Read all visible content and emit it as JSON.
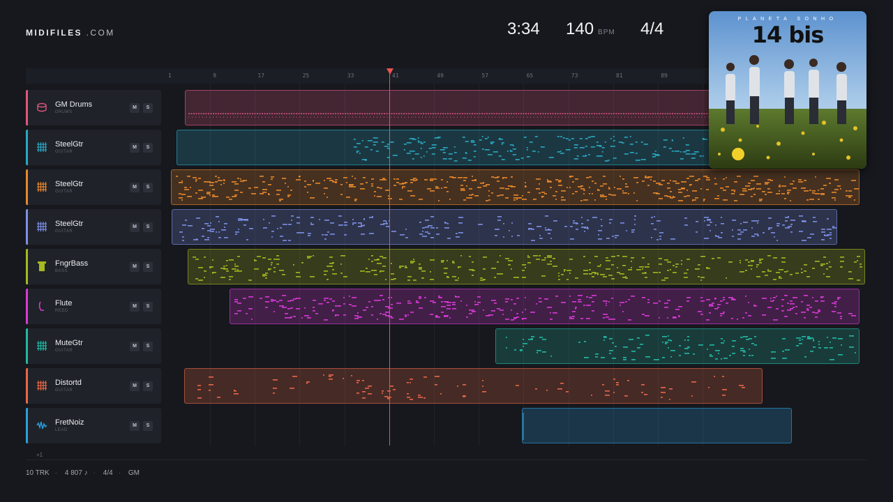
{
  "header": {
    "logo_bold": "MIDIFILES",
    "logo_light": ".COM",
    "duration": "3:34",
    "bpm": "140",
    "bpm_unit": "BPM",
    "time_signature": "4/4"
  },
  "ruler": {
    "bars": [
      "1",
      "9",
      "17",
      "25",
      "33",
      "41",
      "49",
      "57",
      "65",
      "73",
      "81",
      "89"
    ]
  },
  "tracks": [
    {
      "name": "GM Drums",
      "category": "DRUMS",
      "icon": "drum-icon",
      "color": "#e0577f",
      "mute": "M",
      "solo": "S"
    },
    {
      "name": "SteelGtr",
      "category": "GUITAR",
      "icon": "guitar-grid-icon",
      "color": "#2aa8c2",
      "mute": "M",
      "solo": "S"
    },
    {
      "name": "SteelGtr",
      "category": "GUITAR",
      "icon": "guitar-grid-icon",
      "color": "#e8882c",
      "mute": "M",
      "solo": "S"
    },
    {
      "name": "SteelGtr",
      "category": "GUITAR",
      "icon": "guitar-grid-icon",
      "color": "#7d8fe6",
      "mute": "M",
      "solo": "S"
    },
    {
      "name": "FngrBass",
      "category": "BASS",
      "icon": "bass-icon",
      "color": "#a5b820",
      "mute": "M",
      "solo": "S"
    },
    {
      "name": "Flute",
      "category": "REED",
      "icon": "flute-icon",
      "color": "#d93ad8",
      "mute": "M",
      "solo": "S"
    },
    {
      "name": "MuteGtr",
      "category": "GUITAR",
      "icon": "guitar-grid-icon",
      "color": "#22b9a3",
      "mute": "M",
      "solo": "S"
    },
    {
      "name": "Distortd",
      "category": "GUITAR",
      "icon": "guitar-grid-icon",
      "color": "#ea6848",
      "mute": "M",
      "solo": "S"
    },
    {
      "name": "FretNoiz",
      "category": "LEAD",
      "icon": "wave-icon",
      "color": "#2b9fdc",
      "mute": "M",
      "solo": "S"
    }
  ],
  "more_tracks": "+1",
  "footer": {
    "tracks": "10 TRK",
    "notes": "4 807 ♪",
    "time_signature": "4/4",
    "format": "GM"
  },
  "album": {
    "subtitle": "PLANETA SONHO",
    "title": "14 bis"
  }
}
